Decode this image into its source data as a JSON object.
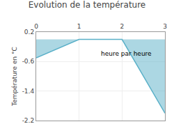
{
  "chart_data": {
    "type": "area",
    "title": "Evolution de la température",
    "ylabel": "Température en °C",
    "x": [
      0,
      1,
      2,
      3
    ],
    "values": [
      -0.5,
      0.0,
      0.0,
      -2.0
    ],
    "color": "#5ab0c8",
    "xlim": [
      0,
      3
    ],
    "xticks": [
      0,
      1,
      2,
      3
    ],
    "ylim": [
      -2.2,
      0.2
    ],
    "yticks": [
      0.2,
      -0.6,
      -1.4,
      -2.2
    ],
    "grid": true,
    "annotations": [
      {
        "text": "heure par heure",
        "x": 2.1,
        "y": -0.38
      }
    ]
  }
}
